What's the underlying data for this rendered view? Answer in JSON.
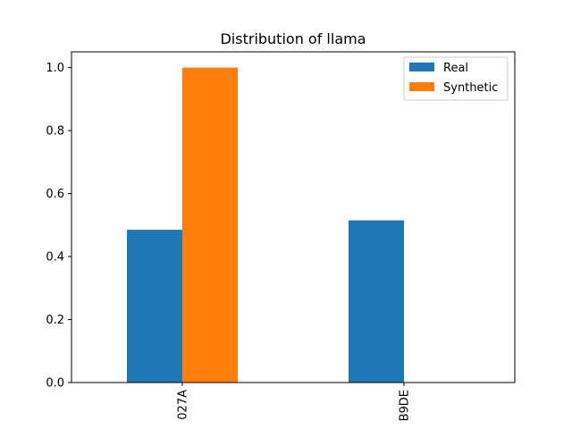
{
  "chart_data": {
    "type": "bar",
    "title": "Distribution of llama",
    "xlabel": "",
    "ylabel": "",
    "categories": [
      "027A",
      "B9DE"
    ],
    "series": [
      {
        "name": "Real",
        "values": [
          0.485,
          0.515
        ],
        "color": "#1f77b4"
      },
      {
        "name": "Synthetic",
        "values": [
          1.0,
          0.0
        ],
        "color": "#ff7f0e"
      }
    ],
    "ylim": [
      0,
      1.05
    ],
    "yticks": [
      0.0,
      0.2,
      0.4,
      0.6,
      0.8,
      1.0
    ],
    "ytick_labels": [
      "0.0",
      "0.2",
      "0.4",
      "0.6",
      "0.8",
      "1.0"
    ],
    "xtick_rotation": "vertical",
    "legend_position": "top-right",
    "grid": false
  }
}
